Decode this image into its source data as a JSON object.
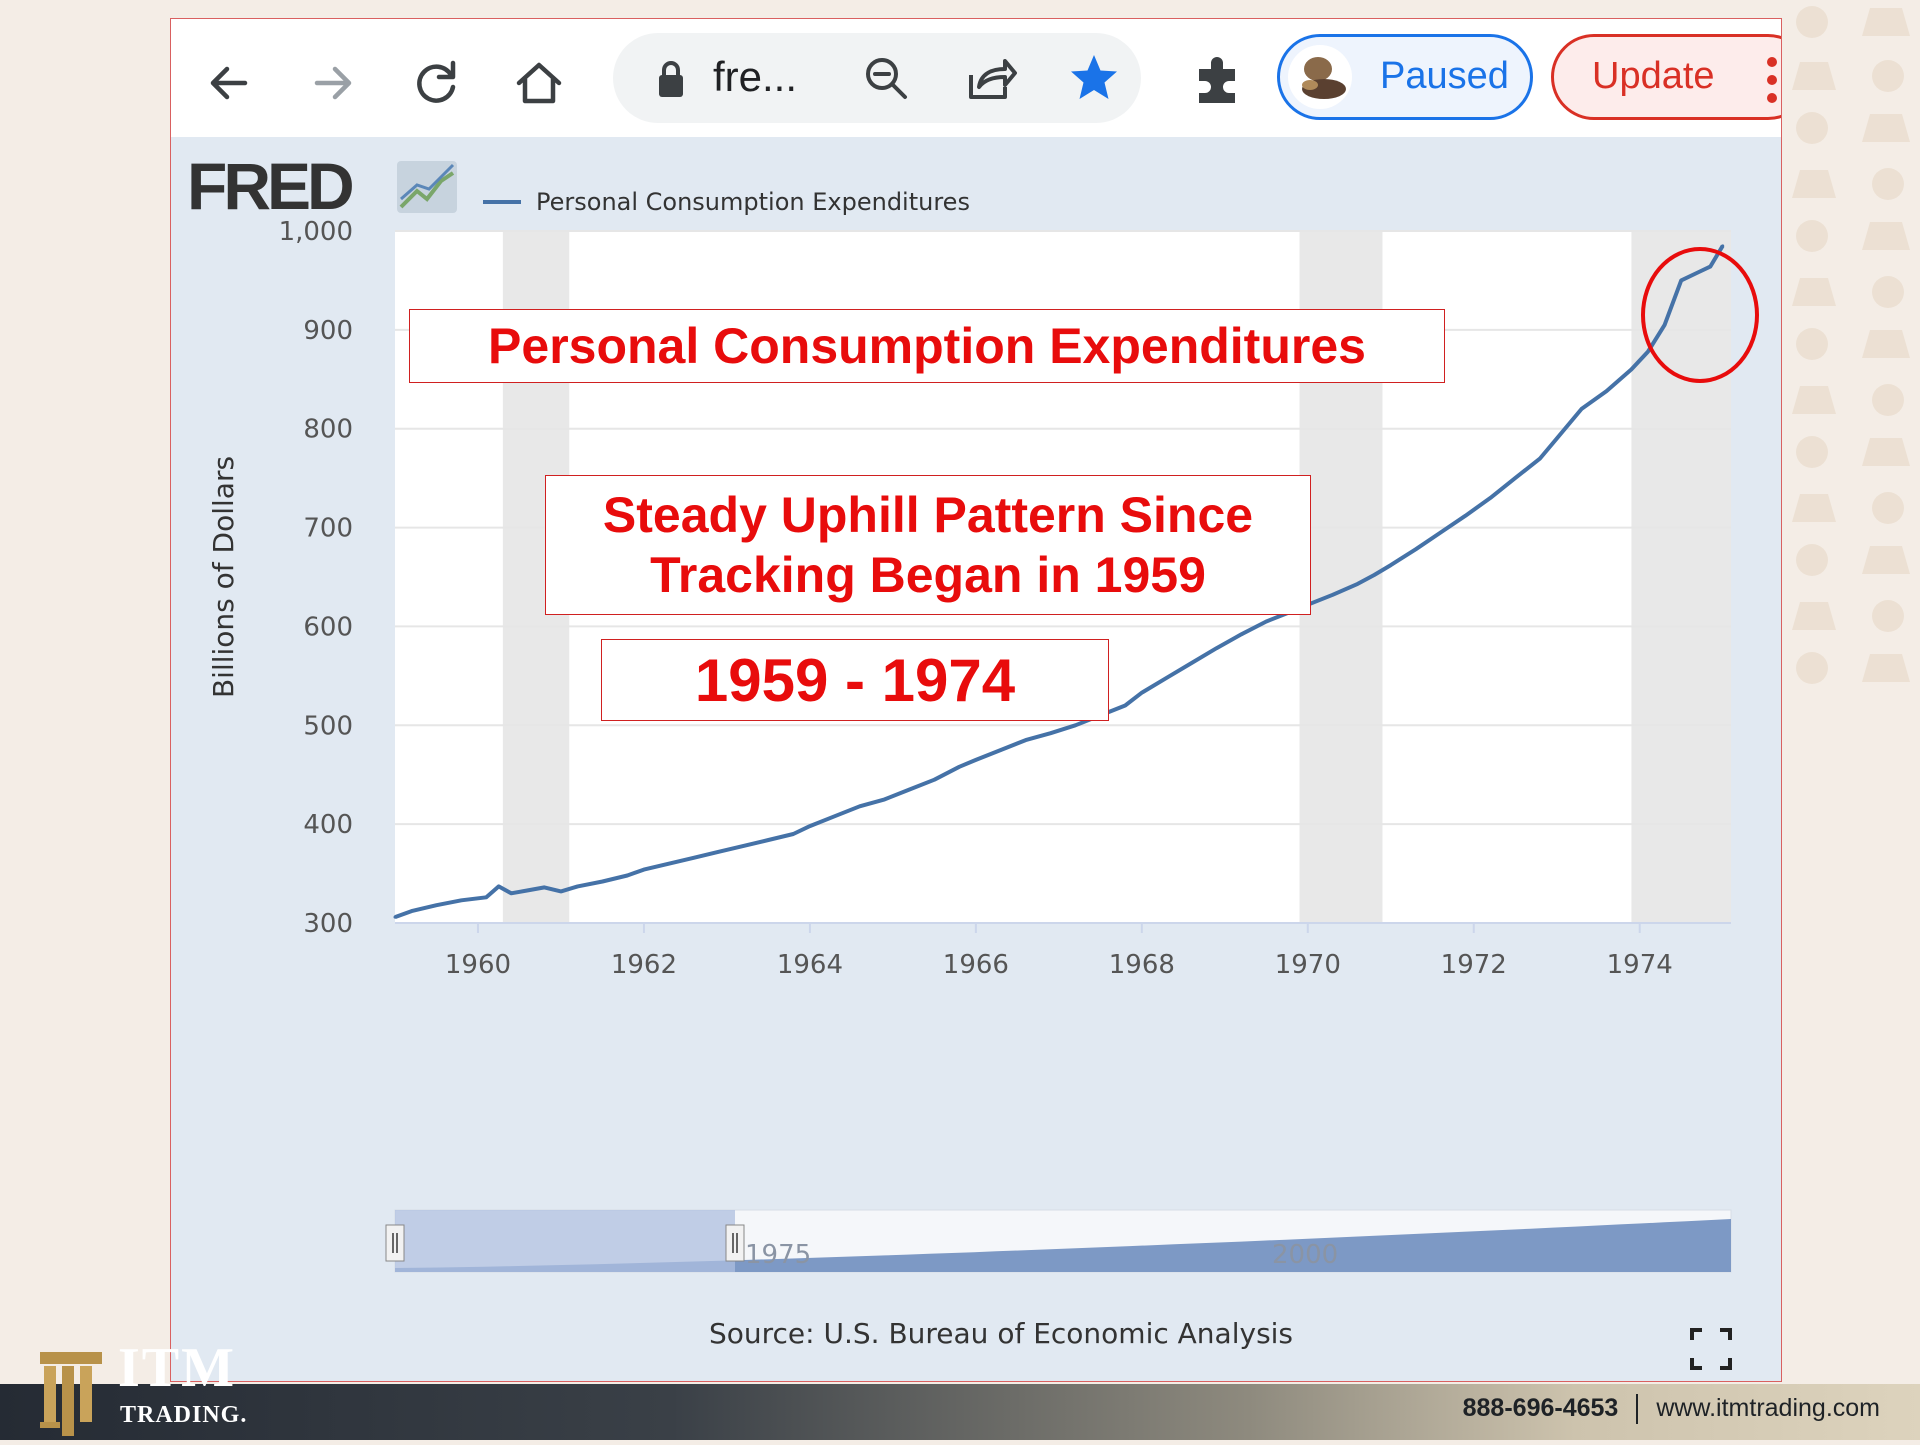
{
  "browser": {
    "address_text": "fre...",
    "extension_status": "Paused",
    "update_label": "Update",
    "icons": [
      "back-arrow-icon",
      "forward-arrow-icon",
      "reload-icon",
      "home-icon",
      "lock-icon",
      "zoom-out-icon",
      "share-icon",
      "bookmark-star-icon",
      "extensions-puzzle-icon",
      "more-menu-icon"
    ]
  },
  "fred": {
    "logo_text": "FRED"
  },
  "chart_data": {
    "type": "line",
    "legend": "Personal Consumption Expenditures",
    "legend_placement": "top-left",
    "ylabel": "Billions of Dollars",
    "ylim": [
      300,
      1000
    ],
    "yticks": [
      "300",
      "400",
      "500",
      "600",
      "700",
      "800",
      "900",
      "1,000"
    ],
    "xlim": [
      1959,
      1975.1
    ],
    "xticks": [
      "1960",
      "1962",
      "1964",
      "1966",
      "1968",
      "1970",
      "1972",
      "1974"
    ],
    "recessions": [
      [
        1960.3,
        1961.1
      ],
      [
        1969.9,
        1970.9
      ],
      [
        1973.9,
        1975.1
      ]
    ],
    "series": [
      {
        "name": "Personal Consumption Expenditures",
        "color": "#4572a7",
        "x": [
          1959.0,
          1959.2,
          1959.5,
          1959.8,
          1960.1,
          1960.25,
          1960.4,
          1960.6,
          1960.8,
          1961.0,
          1961.2,
          1961.5,
          1961.8,
          1962.0,
          1962.3,
          1962.6,
          1962.9,
          1963.2,
          1963.5,
          1963.8,
          1964.0,
          1964.3,
          1964.6,
          1964.9,
          1965.2,
          1965.5,
          1965.8,
          1966.0,
          1966.3,
          1966.6,
          1966.9,
          1967.2,
          1967.5,
          1967.8,
          1968.0,
          1968.3,
          1968.6,
          1968.9,
          1969.2,
          1969.5,
          1969.8,
          1970.0,
          1970.3,
          1970.6,
          1970.8,
          1971.0,
          1971.3,
          1971.6,
          1971.9,
          1972.2,
          1972.5,
          1972.8,
          1973.0,
          1973.3,
          1973.6,
          1973.9,
          1974.1,
          1974.3,
          1974.5,
          1974.7,
          1974.85,
          1975.0
        ],
        "values": [
          306,
          312,
          318,
          323,
          326,
          337,
          330,
          333,
          336,
          332,
          337,
          342,
          348,
          354,
          360,
          366,
          372,
          378,
          384,
          390,
          398,
          408,
          418,
          425,
          435,
          445,
          458,
          465,
          475,
          485,
          492,
          500,
          510,
          520,
          533,
          548,
          563,
          578,
          592,
          605,
          615,
          622,
          632,
          643,
          652,
          662,
          678,
          695,
          712,
          730,
          750,
          770,
          790,
          820,
          838,
          860,
          878,
          905,
          950,
          958,
          964,
          985
        ]
      }
    ],
    "navigator_labels": [
      "1975",
      "2000"
    ],
    "source": "Source: U.S. Bureau of Economic Analysis"
  },
  "annotations": {
    "title": "Personal Consumption Expenditures",
    "subtitle_line1": "Steady Uphill Pattern Since",
    "subtitle_line2": "Tracking Began in 1959",
    "range": "1959 - 1974"
  },
  "footer": {
    "brand": "ITM",
    "brand_sub": "TRADING.",
    "phone": "888-696-4653",
    "website": "www.itmtrading.com"
  }
}
